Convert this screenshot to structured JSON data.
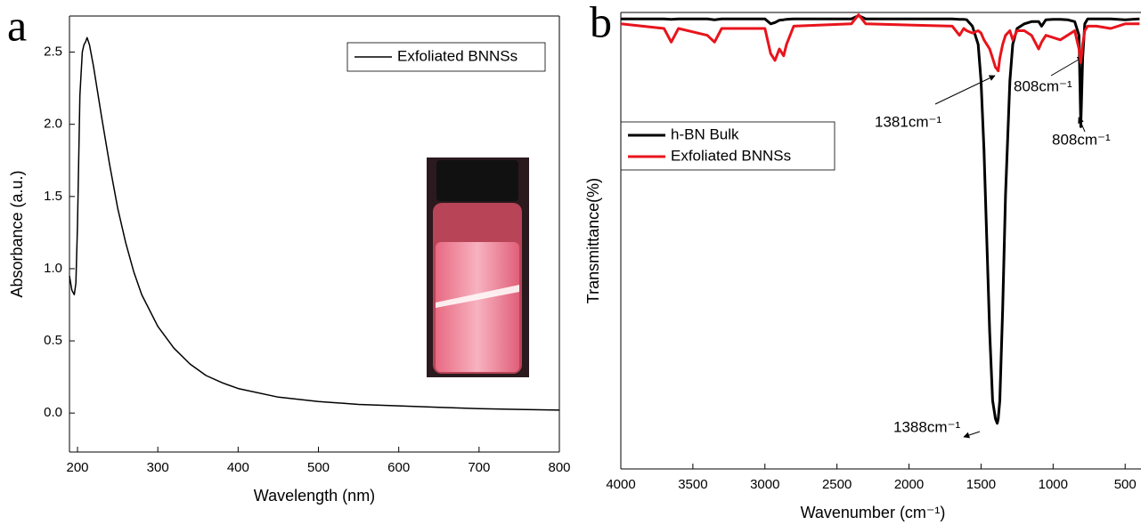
{
  "chart_data": [
    {
      "type": "line",
      "panel_label": "a",
      "xlabel": "Wavelength (nm)",
      "ylabel": "Absorbance (a.u.)",
      "xlim": [
        190,
        800
      ],
      "ylim": [
        -0.27,
        2.75
      ],
      "xticks": [
        200,
        300,
        400,
        500,
        600,
        700,
        800
      ],
      "yticks": [
        {
          "value": 0,
          "label": "0.0"
        },
        0.5,
        {
          "value": 1,
          "label": "1.0"
        },
        1.5,
        {
          "value": 2,
          "label": "2.0"
        },
        2.5
      ],
      "x": [
        190,
        193,
        196,
        198,
        200,
        203,
        206,
        208,
        210,
        212,
        215,
        220,
        230,
        240,
        250,
        260,
        270,
        280,
        300,
        320,
        340,
        360,
        380,
        400,
        450,
        500,
        550,
        600,
        650,
        700,
        750,
        800
      ],
      "series": [
        {
          "name": "Exfoliated BNNSs",
          "color": "#000000",
          "values": [
            0.95,
            0.85,
            0.82,
            0.9,
            1.3,
            2.2,
            2.5,
            2.55,
            2.57,
            2.6,
            2.55,
            2.4,
            2.05,
            1.72,
            1.42,
            1.18,
            0.98,
            0.82,
            0.6,
            0.45,
            0.34,
            0.26,
            0.21,
            0.17,
            0.11,
            0.08,
            0.06,
            0.05,
            0.04,
            0.03,
            0.025,
            0.02
          ]
        }
      ]
    },
    {
      "type": "line",
      "panel_label": "b",
      "xlabel": "Wavenumber (cm⁻¹)",
      "ylabel": "Transmittance(%)",
      "xlim": [
        4000,
        390
      ],
      "ylim": [
        0,
        100
      ],
      "xticks": [
        4000,
        3500,
        3000,
        2500,
        2000,
        1500,
        1000,
        500
      ],
      "x": [
        4000,
        3700,
        3650,
        3600,
        3400,
        3350,
        3300,
        3000,
        2960,
        2930,
        2900,
        2870,
        2850,
        2800,
        2400,
        2350,
        2300,
        1700,
        1650,
        1620,
        1600,
        1560,
        1520,
        1500,
        1480,
        1460,
        1440,
        1420,
        1400,
        1388,
        1381,
        1370,
        1350,
        1330,
        1300,
        1280,
        1250,
        1200,
        1150,
        1100,
        1080,
        1050,
        1000,
        950,
        900,
        850,
        820,
        808,
        795,
        780,
        760,
        700,
        600,
        500,
        400
      ],
      "series": [
        {
          "name": "h-BN Bulk",
          "color": "#000000",
          "values": [
            98.6,
            98.6,
            98.5,
            98.6,
            98.6,
            98.4,
            98.6,
            98.6,
            97.5,
            97.8,
            98.3,
            98.4,
            98.5,
            98.6,
            98.6,
            99.3,
            98.6,
            98.6,
            98.5,
            98.5,
            98.4,
            97,
            93,
            85,
            70,
            50,
            30,
            15,
            11,
            10,
            11,
            15,
            35,
            60,
            85,
            93,
            96.5,
            97.5,
            98,
            98,
            97,
            98.4,
            98.5,
            98.5,
            98.4,
            98,
            95,
            75,
            90,
            97.5,
            98.6,
            98.6,
            98.6,
            98.4,
            98.6
          ]
        },
        {
          "name": "Exfoliated BNNSs",
          "color": "#e8141c",
          "values": [
            97.5,
            96.5,
            93.5,
            96.5,
            95,
            93.5,
            96.5,
            96.5,
            91,
            89.5,
            92,
            90.5,
            93,
            97,
            97.5,
            99.5,
            97.5,
            97,
            95,
            96.5,
            96,
            95.5,
            96,
            95.5,
            94,
            93,
            92,
            90,
            88,
            87.5,
            87.2,
            90,
            93,
            95,
            96,
            94,
            96,
            96,
            95,
            92,
            93.5,
            95,
            94.5,
            94,
            95,
            96,
            92,
            89,
            93,
            96,
            97,
            97,
            96.5,
            97.5,
            97.5
          ]
        }
      ],
      "annotations": [
        "1381cm⁻¹",
        "808cm⁻¹",
        "808cm⁻¹",
        "1388cm⁻¹"
      ]
    }
  ]
}
